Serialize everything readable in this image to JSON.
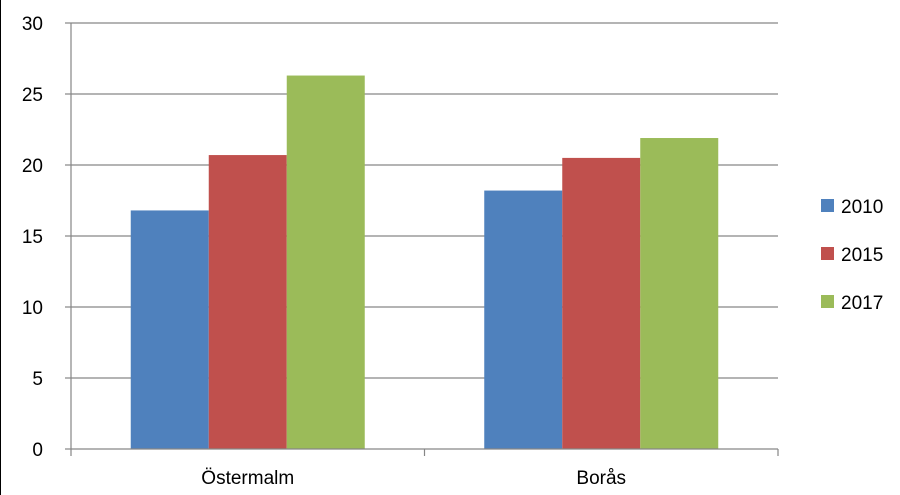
{
  "chart_data": {
    "type": "bar",
    "title": "",
    "xlabel": "",
    "ylabel": "",
    "categories": [
      "Östermalm",
      "Borås"
    ],
    "series": [
      {
        "name": "2010",
        "color": "#4F81BD",
        "values": [
          16.8,
          18.2
        ]
      },
      {
        "name": "2015",
        "color": "#C0504D",
        "values": [
          20.7,
          20.5
        ]
      },
      {
        "name": "2017",
        "color": "#9BBB59",
        "values": [
          26.3,
          21.9
        ]
      }
    ],
    "ylim": [
      0,
      30
    ],
    "yticks": [
      "0",
      "5",
      "10",
      "15",
      "20",
      "25",
      "30"
    ],
    "grid": true,
    "legend": "right"
  }
}
